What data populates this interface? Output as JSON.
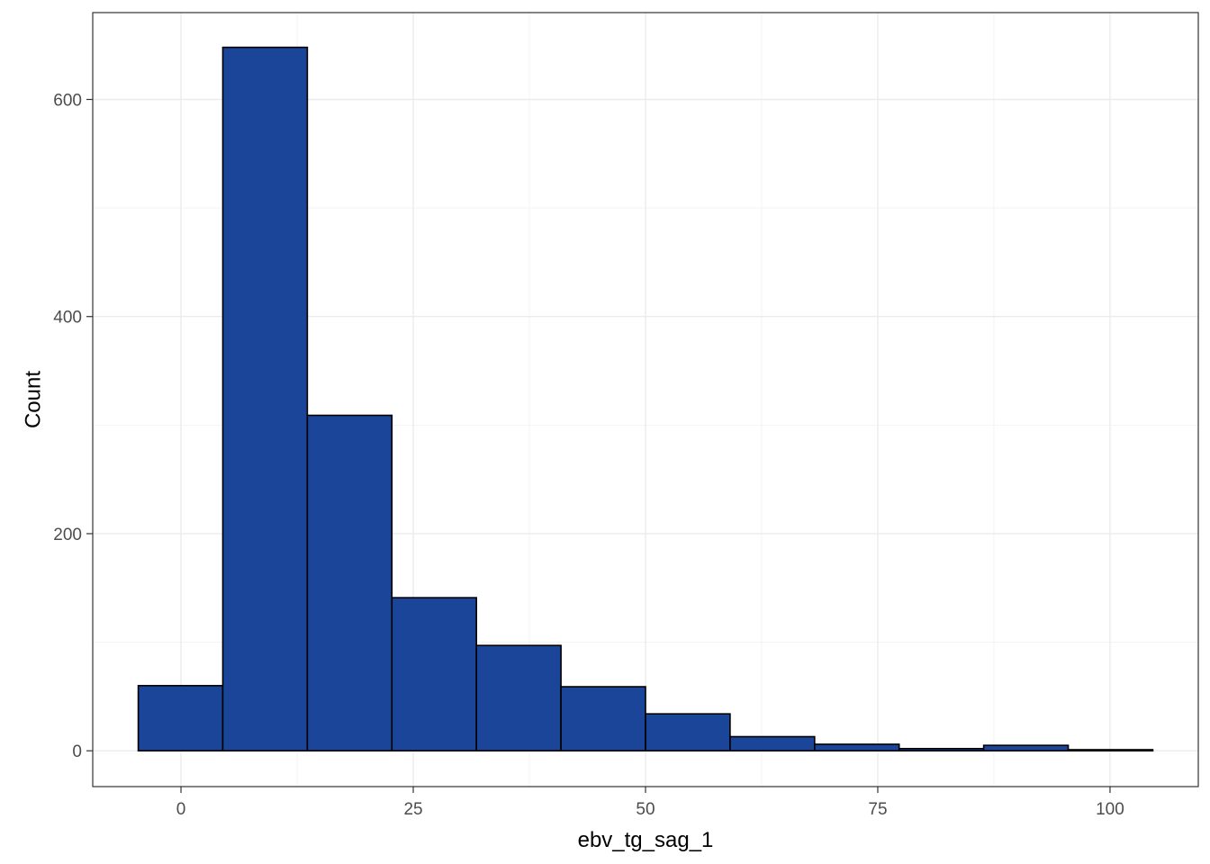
{
  "chart_data": {
    "type": "bar",
    "subtype": "histogram",
    "xlabel": "ebv_tg_sag_1",
    "ylabel": "Count",
    "xlim": [
      -9.5,
      109.5
    ],
    "ylim": [
      -33,
      680
    ],
    "x_ticks": [
      0,
      25,
      50,
      75,
      100
    ],
    "y_ticks": [
      0,
      200,
      400,
      600
    ],
    "x_tick_labels": [
      "0",
      "25",
      "50",
      "75",
      "100"
    ],
    "y_tick_labels": [
      "0",
      "200",
      "400",
      "600"
    ],
    "grid": true,
    "bar_color": "#1a4599",
    "bar_edge_color": "#000000",
    "bins": [
      {
        "x0": -4.6,
        "x1": 4.5,
        "count": 60
      },
      {
        "x0": 4.5,
        "x1": 13.6,
        "count": 648
      },
      {
        "x0": 13.6,
        "x1": 22.7,
        "count": 309
      },
      {
        "x0": 22.7,
        "x1": 31.8,
        "count": 141
      },
      {
        "x0": 31.8,
        "x1": 40.9,
        "count": 97
      },
      {
        "x0": 40.9,
        "x1": 50.0,
        "count": 59
      },
      {
        "x0": 50.0,
        "x1": 59.1,
        "count": 34
      },
      {
        "x0": 59.1,
        "x1": 68.2,
        "count": 13
      },
      {
        "x0": 68.2,
        "x1": 77.3,
        "count": 6
      },
      {
        "x0": 77.3,
        "x1": 86.4,
        "count": 2
      },
      {
        "x0": 86.4,
        "x1": 95.5,
        "count": 5
      },
      {
        "x0": 95.5,
        "x1": 104.6,
        "count": 1
      }
    ]
  }
}
